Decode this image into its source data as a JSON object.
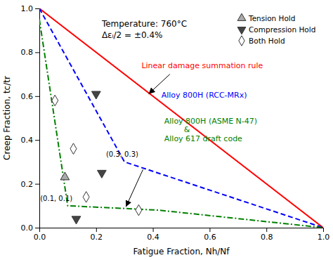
{
  "chart_data": {
    "type": "line",
    "title": "Temperature: 760°C",
    "subtitle": "Δεₗ/2 = ±0.4%",
    "xlabel": "Fatigue Fraction, Nh/Nf",
    "ylabel": "Creep Fraction, tc/tr",
    "xlim": [
      0,
      1
    ],
    "ylim": [
      0,
      1
    ],
    "xticks": [
      {
        "value": 0,
        "label": "0.0"
      },
      0.2,
      0.4,
      0.6,
      0.8,
      {
        "value": 1,
        "label": "1.0"
      }
    ],
    "yticks": [
      {
        "value": 0,
        "label": "0.0"
      },
      0.2,
      0.4,
      0.6,
      0.8,
      {
        "value": 1,
        "label": "1.0"
      }
    ],
    "grid": false,
    "legend": "upper right",
    "series": [
      {
        "type": "line",
        "color": "red",
        "line_style": "solid",
        "x": [
          0.0,
          1.0
        ],
        "values": [
          1.0,
          0.0
        ]
      },
      {
        "type": "line",
        "color": "blue",
        "line_style": "dashed",
        "x": [
          0.0,
          0.3,
          1.0
        ],
        "values": [
          1.0,
          0.3,
          0.0
        ]
      },
      {
        "type": "line",
        "color": "green",
        "line_style": "dashdot",
        "x": [
          0.0,
          0.1,
          0.42,
          1.0
        ],
        "values": [
          0.95,
          0.1,
          0.08,
          0.0
        ]
      },
      {
        "type": "scatter",
        "name": "Tension Hold",
        "marker": "triangle-up",
        "color": "#aaaaaa",
        "x": [
          0.09
        ],
        "values": [
          0.23
        ]
      },
      {
        "type": "scatter",
        "name": "Compression Hold",
        "marker": "triangle-down",
        "color": "#444444",
        "x": [
          0.13,
          0.2,
          0.22
        ],
        "values": [
          0.04,
          0.61,
          0.25
        ]
      },
      {
        "type": "scatter",
        "name": "Both Hold",
        "marker": "diamond",
        "color": "white",
        "x": [
          0.055,
          0.12,
          0.165,
          0.35
        ],
        "values": [
          0.58,
          0.36,
          0.14,
          0.08
        ]
      }
    ],
    "annotations": [
      {
        "text": "Linear damage summation rule",
        "color": "red",
        "x": 0.36,
        "y": 0.72,
        "arrow_from": [
          0.46,
          0.7
        ],
        "arrow_to": [
          0.385,
          0.61
        ]
      },
      {
        "text": "Alloy 800H (RCC-MRx)",
        "color": "blue",
        "x": 0.43,
        "y": 0.585
      },
      {
        "text": "Alloy 800H (ASME N-47)\n        &\nAlloy 617 draft code",
        "color": "green",
        "x": 0.44,
        "y": 0.505,
        "arrow_from": [
          0.365,
          0.265
        ],
        "arrow_to": [
          0.305,
          0.095
        ]
      },
      {
        "text": "(0.1, 0.1)",
        "x": 0.003,
        "y": 0.115
      },
      {
        "text": "(0.3, 0.3)",
        "x": 0.235,
        "y": 0.315
      }
    ]
  }
}
